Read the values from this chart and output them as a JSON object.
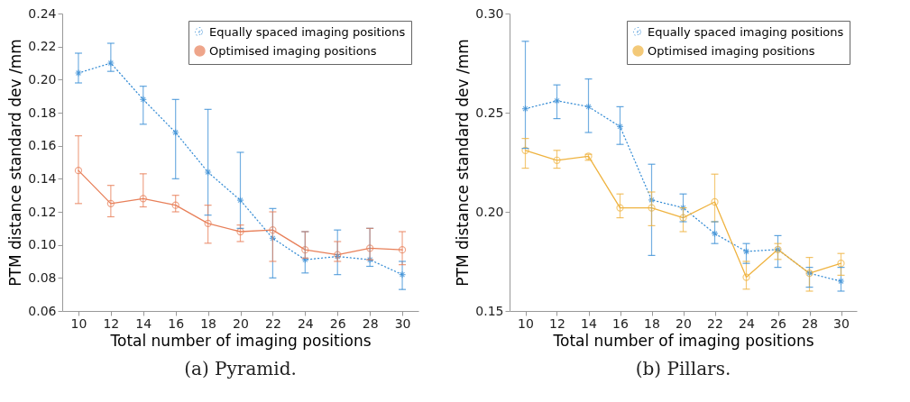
{
  "chart_data": [
    {
      "type": "line",
      "title": "(a) Pyramid.",
      "xlabel": "Total number of imaging positions",
      "ylabel": "PTM distance standard dev  /mm",
      "x": [
        10,
        12,
        14,
        16,
        18,
        20,
        22,
        24,
        26,
        28,
        30
      ],
      "xlim": [
        9,
        31
      ],
      "xticks": [
        10,
        12,
        14,
        16,
        18,
        20,
        22,
        24,
        26,
        28,
        30
      ],
      "ylim": [
        0.06,
        0.24
      ],
      "yticks": [
        0.06,
        0.08,
        {
          "value": 0.1,
          "label": "0.10"
        },
        0.12,
        0.14,
        0.16,
        0.18,
        {
          "value": 0.2,
          "label": "0.20"
        },
        0.22,
        0.24
      ],
      "grid": false,
      "legend": "top right",
      "series": [
        {
          "name": "Equally spaced imaging positions",
          "color": "#3a8fd6",
          "marker": "cross",
          "line_style": "dotted",
          "values": [
            0.204,
            0.21,
            0.188,
            0.168,
            0.144,
            0.127,
            0.104,
            0.091,
            0.093,
            0.091,
            0.082
          ],
          "errors": [
            [
              0.198,
              0.216
            ],
            [
              0.205,
              0.222
            ],
            [
              0.173,
              0.196
            ],
            [
              0.14,
              0.188
            ],
            [
              0.118,
              0.182
            ],
            [
              0.11,
              0.156
            ],
            [
              0.08,
              0.122
            ],
            [
              0.083,
              0.108
            ],
            [
              0.082,
              0.109
            ],
            [
              0.087,
              0.11
            ],
            [
              0.073,
              0.09
            ]
          ]
        },
        {
          "name": "Optimised imaging positions",
          "color": "#e8805a",
          "marker": "circle",
          "line_style": "solid",
          "values": [
            0.145,
            0.125,
            0.128,
            0.124,
            0.113,
            0.108,
            0.109,
            0.097,
            0.094,
            0.098,
            0.097
          ],
          "errors": [
            [
              0.125,
              0.166
            ],
            [
              0.117,
              0.136
            ],
            [
              0.123,
              0.143
            ],
            [
              0.12,
              0.13
            ],
            [
              0.101,
              0.124
            ],
            [
              0.102,
              0.112
            ],
            [
              0.09,
              0.12
            ],
            [
              0.092,
              0.108
            ],
            [
              0.09,
              0.102
            ],
            [
              0.091,
              0.11
            ],
            [
              0.088,
              0.108
            ]
          ]
        }
      ]
    },
    {
      "type": "line",
      "title": "(b) Pillars.",
      "xlabel": "Total number of imaging positions",
      "ylabel": "PTM distance standard dev  /mm",
      "x": [
        10,
        12,
        14,
        16,
        18,
        20,
        22,
        24,
        26,
        28,
        30
      ],
      "xlim": [
        9,
        31
      ],
      "xticks": [
        10,
        12,
        14,
        16,
        18,
        20,
        22,
        24,
        26,
        28,
        30
      ],
      "ylim": [
        0.15,
        0.3
      ],
      "yticks": [
        {
          "value": 0.15,
          "label": "0.15"
        },
        {
          "value": 0.2,
          "label": "0.20"
        },
        {
          "value": 0.25,
          "label": "0.25"
        },
        {
          "value": 0.3,
          "label": "0.30"
        }
      ],
      "grid": false,
      "legend": "top right",
      "series": [
        {
          "name": "Equally spaced imaging positions",
          "color": "#3a8fd6",
          "marker": "cross",
          "line_style": "dotted",
          "values": [
            0.252,
            0.256,
            0.253,
            0.243,
            0.206,
            0.202,
            0.189,
            0.18,
            0.181,
            0.169,
            0.165
          ],
          "errors": [
            [
              0.232,
              0.286
            ],
            [
              0.247,
              0.264
            ],
            [
              0.24,
              0.267
            ],
            [
              0.234,
              0.253
            ],
            [
              0.178,
              0.224
            ],
            [
              0.195,
              0.209
            ],
            [
              0.184,
              0.195
            ],
            [
              0.174,
              0.184
            ],
            [
              0.172,
              0.188
            ],
            [
              0.162,
              0.172
            ],
            [
              0.16,
              0.172
            ]
          ]
        },
        {
          "name": "Optimised imaging positions",
          "color": "#efb340",
          "marker": "circle",
          "line_style": "solid",
          "values": [
            0.231,
            0.226,
            0.228,
            0.202,
            0.202,
            0.197,
            0.205,
            0.167,
            0.181,
            0.169,
            0.174
          ],
          "errors": [
            [
              0.222,
              0.237
            ],
            [
              0.222,
              0.231
            ],
            [
              0.226,
              0.229
            ],
            [
              0.197,
              0.209
            ],
            [
              0.193,
              0.21
            ],
            [
              0.19,
              0.202
            ],
            [
              0.195,
              0.219
            ],
            [
              0.161,
              0.175
            ],
            [
              0.176,
              0.184
            ],
            [
              0.16,
              0.177
            ],
            [
              0.168,
              0.179
            ]
          ]
        }
      ]
    }
  ]
}
